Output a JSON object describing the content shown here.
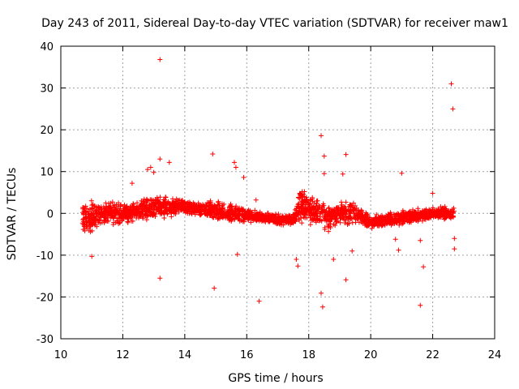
{
  "chart_data": {
    "type": "scatter",
    "title": "Day 243 of 2011, Sidereal Day-to-day VTEC variation (SDTVAR) for receiver maw1",
    "xlabel": "GPS time / hours",
    "ylabel": "SDTVAR / TECUs",
    "xlim": [
      10,
      24
    ],
    "ylim": [
      -30,
      40
    ],
    "xticks": [
      10,
      12,
      14,
      16,
      18,
      20,
      22,
      24
    ],
    "yticks": [
      -30,
      -20,
      -10,
      0,
      10,
      20,
      30,
      40
    ],
    "grid": true,
    "marker": "+",
    "color": "#ff0000",
    "band": {
      "description": "dense band of points (approximate centre/spread over time)",
      "x": [
        10.7,
        11.0,
        11.5,
        12.0,
        12.5,
        13.0,
        13.5,
        14.0,
        14.5,
        15.0,
        15.5,
        16.0,
        16.5,
        17.0,
        17.5,
        17.7,
        18.0,
        18.3,
        18.6,
        19.0,
        19.5,
        20.0,
        20.5,
        21.0,
        21.5,
        22.0,
        22.5,
        22.7
      ],
      "center": [
        -1,
        -1,
        0,
        0,
        0.5,
        1.5,
        1.5,
        1.5,
        1,
        0.5,
        0,
        -0.5,
        -1,
        -1.5,
        -1.5,
        2,
        1,
        0,
        -1,
        0,
        0,
        -2,
        -1.5,
        -1,
        -0.5,
        0,
        0,
        0
      ],
      "spread": [
        5,
        5,
        4,
        3,
        3,
        4,
        3,
        2,
        2,
        3,
        3,
        2,
        1.5,
        1.5,
        1.5,
        6,
        4,
        4,
        4,
        4,
        3,
        2,
        2,
        2,
        2,
        2,
        2,
        2
      ]
    },
    "outliers": {
      "x": [
        13.2,
        22.6,
        22.65,
        18.4,
        14.9,
        13.2,
        13.5,
        12.9,
        13.0,
        15.6,
        15.65,
        18.5,
        19.2,
        21.0,
        19.1,
        18.4,
        18.45,
        11.0,
        13.2,
        14.95,
        16.4,
        19.2,
        21.6,
        21.7,
        17.6,
        17.65,
        18.8,
        22.7,
        22.7,
        12.3,
        12.8,
        15.9,
        15.7,
        16.3,
        19.4,
        18.5,
        20.8,
        20.9,
        21.6,
        22.0
      ],
      "y": [
        36.8,
        31.0,
        25.0,
        18.6,
        14.2,
        13.0,
        12.2,
        11.0,
        9.8,
        12.2,
        11.0,
        13.7,
        14.1,
        9.6,
        9.4,
        -19.1,
        -22.4,
        -10.3,
        -15.5,
        -17.9,
        -21.0,
        -15.9,
        -22.0,
        -12.8,
        -11.0,
        -12.6,
        -11.0,
        -6.0,
        -8.5,
        7.2,
        10.5,
        8.6,
        -9.8,
        3.2,
        -9.0,
        9.5,
        -6.2,
        -8.8,
        -6.5,
        4.8
      ]
    }
  }
}
